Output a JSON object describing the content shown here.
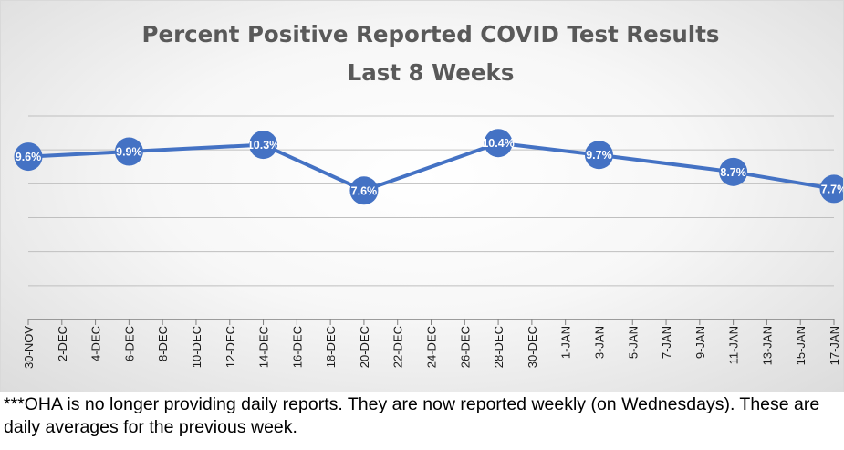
{
  "chart_data": {
    "type": "line",
    "title": "Percent Positive Reported COVID Test Results",
    "subtitle": "Last 8 Weeks",
    "xlabel": "",
    "ylabel": "",
    "ylim": [
      0,
      12
    ],
    "grid": true,
    "legend": "none",
    "categories": [
      "30-NOV",
      "2-DEC",
      "4-DEC",
      "6-DEC",
      "8-DEC",
      "10-DEC",
      "12-DEC",
      "14-DEC",
      "16-DEC",
      "18-DEC",
      "20-DEC",
      "22-DEC",
      "24-DEC",
      "26-DEC",
      "28-DEC",
      "30-DEC",
      "1-JAN",
      "3-JAN",
      "5-JAN",
      "7-JAN",
      "9-JAN",
      "11-JAN",
      "13-JAN",
      "15-JAN",
      "17-JAN"
    ],
    "series": [
      {
        "name": "Percent Positive",
        "color": "#4472c4",
        "points": [
          {
            "x": "30-NOV",
            "y": 9.6,
            "label": "9.6%"
          },
          {
            "x": "6-DEC",
            "y": 9.9,
            "label": "9.9%"
          },
          {
            "x": "14-DEC",
            "y": 10.3,
            "label": "10.3%"
          },
          {
            "x": "20-DEC",
            "y": 7.6,
            "label": "7.6%"
          },
          {
            "x": "28-DEC",
            "y": 10.4,
            "label": "10.4%"
          },
          {
            "x": "3-JAN",
            "y": 9.7,
            "label": "9.7%"
          },
          {
            "x": "11-JAN",
            "y": 8.7,
            "label": "8.7%"
          },
          {
            "x": "17-JAN",
            "y": 7.7,
            "label": "7.7%"
          }
        ]
      }
    ]
  },
  "footnote": "***OHA is no longer providing daily reports.  They are now reported weekly (on Wednesdays). These are daily averages for the previous week."
}
